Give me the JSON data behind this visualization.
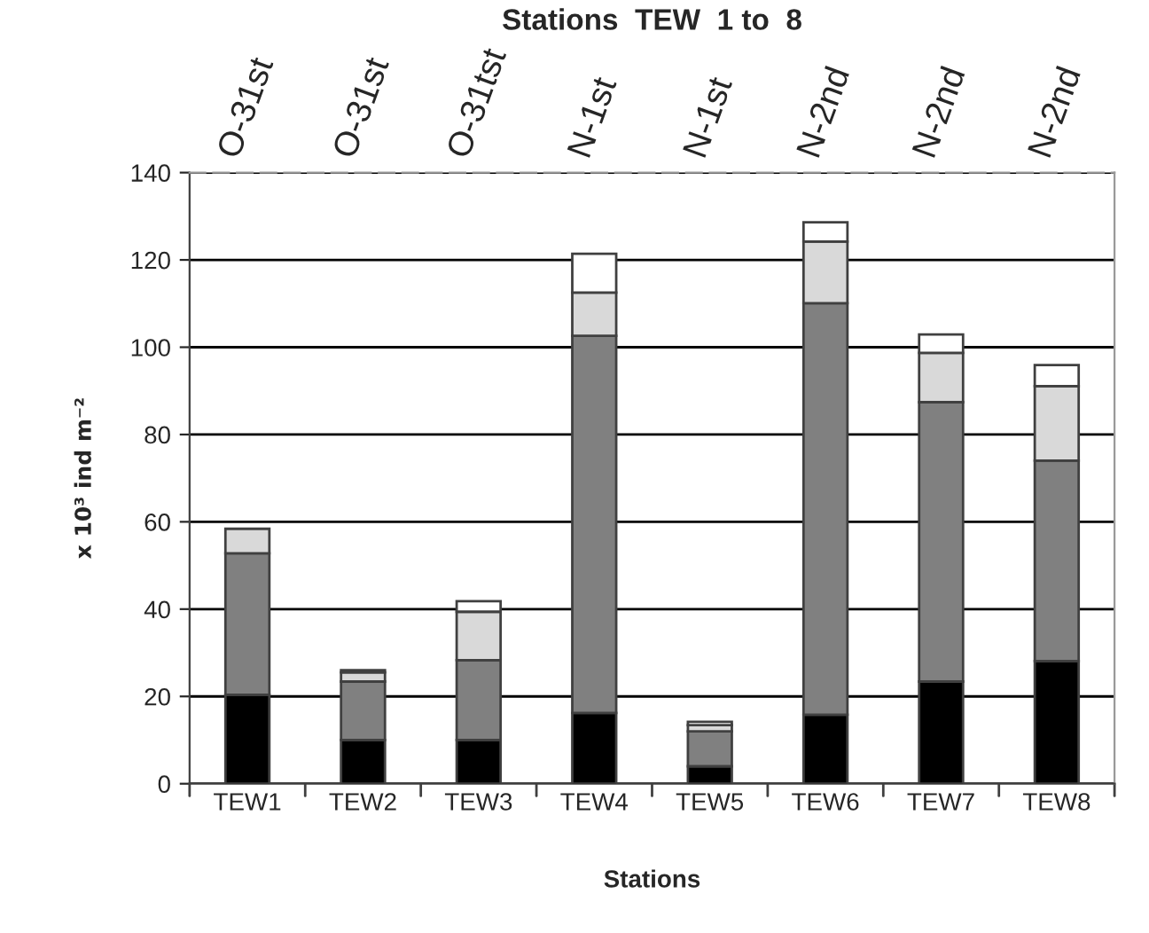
{
  "chart_data": {
    "type": "bar",
    "title": "Stations  TEW  1 to  8",
    "xlabel": "Stations",
    "ylabel": "x 10³ ind m⁻²",
    "categories": [
      "TEW1",
      "TEW2",
      "TEW3",
      "TEW4",
      "TEW5",
      "TEW6",
      "TEW7",
      "TEW8"
    ],
    "stacked": true,
    "series": [
      {
        "color": "#000000",
        "values": [
          20.4,
          10.0,
          10.0,
          16.2,
          4.0,
          15.8,
          23.4,
          28.1
        ]
      },
      {
        "color": "#808080",
        "values": [
          32.4,
          13.4,
          18.3,
          86.4,
          8.0,
          94.3,
          64.0,
          45.9
        ]
      },
      {
        "color": "#d9d9d9",
        "values": [
          5.6,
          2.1,
          11.1,
          9.9,
          1.4,
          14.1,
          11.3,
          17.1
        ]
      },
      {
        "color": "#ffffff",
        "values": [
          null,
          0.5,
          2.4,
          8.9,
          0.8,
          4.4,
          4.2,
          4.8
        ]
      }
    ],
    "ylim": [
      0,
      140
    ],
    "yticks": [
      0,
      20,
      40,
      60,
      80,
      100,
      120,
      140
    ],
    "grid": "y",
    "legend": false,
    "annotations": [
      "O-31st",
      "O-31st",
      "O-31tst",
      "N-1st",
      "N-1st",
      "N-2nd",
      "N-2nd",
      "N-2nd"
    ]
  }
}
